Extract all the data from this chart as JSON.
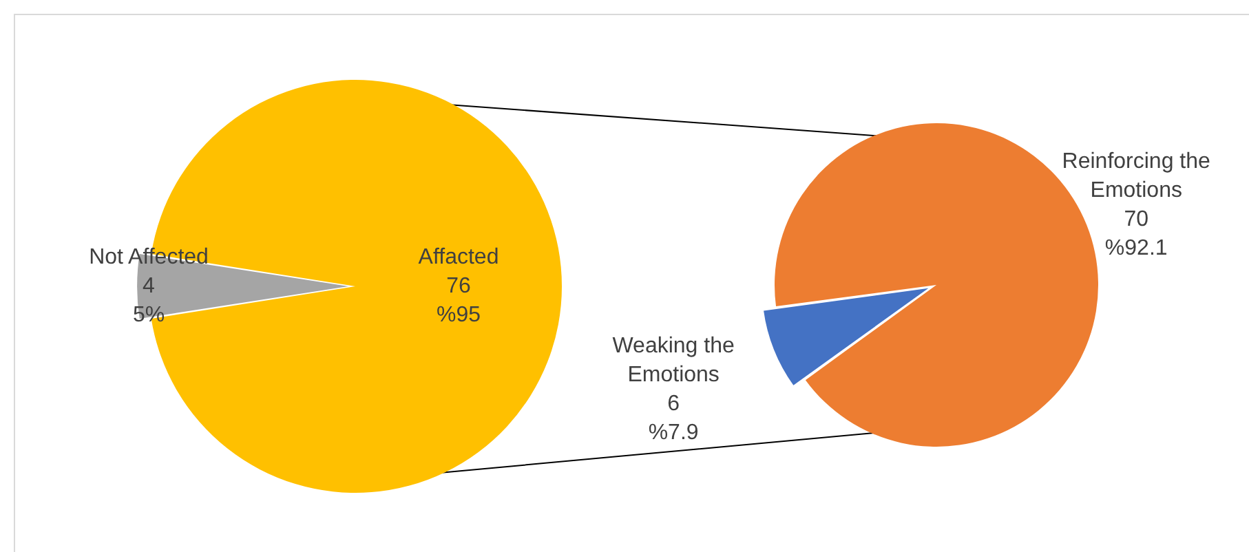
{
  "chart_data": [
    {
      "type": "pie",
      "categories": [
        "Not Affected",
        "Affacted"
      ],
      "values": [
        4,
        76
      ],
      "colors": [
        "#a5a5a5",
        "#ffc000"
      ],
      "value_labels": [
        "4\n5%",
        "76\n%95"
      ]
    },
    {
      "type": "pie",
      "categories": [
        "Weaking the Emotions",
        "Reinforcing the Emotions"
      ],
      "values": [
        6,
        70
      ],
      "colors": [
        "#4472c4",
        "#ed7d31"
      ],
      "value_labels": [
        "6\n%7.9",
        "70\n%92.1"
      ]
    }
  ]
}
